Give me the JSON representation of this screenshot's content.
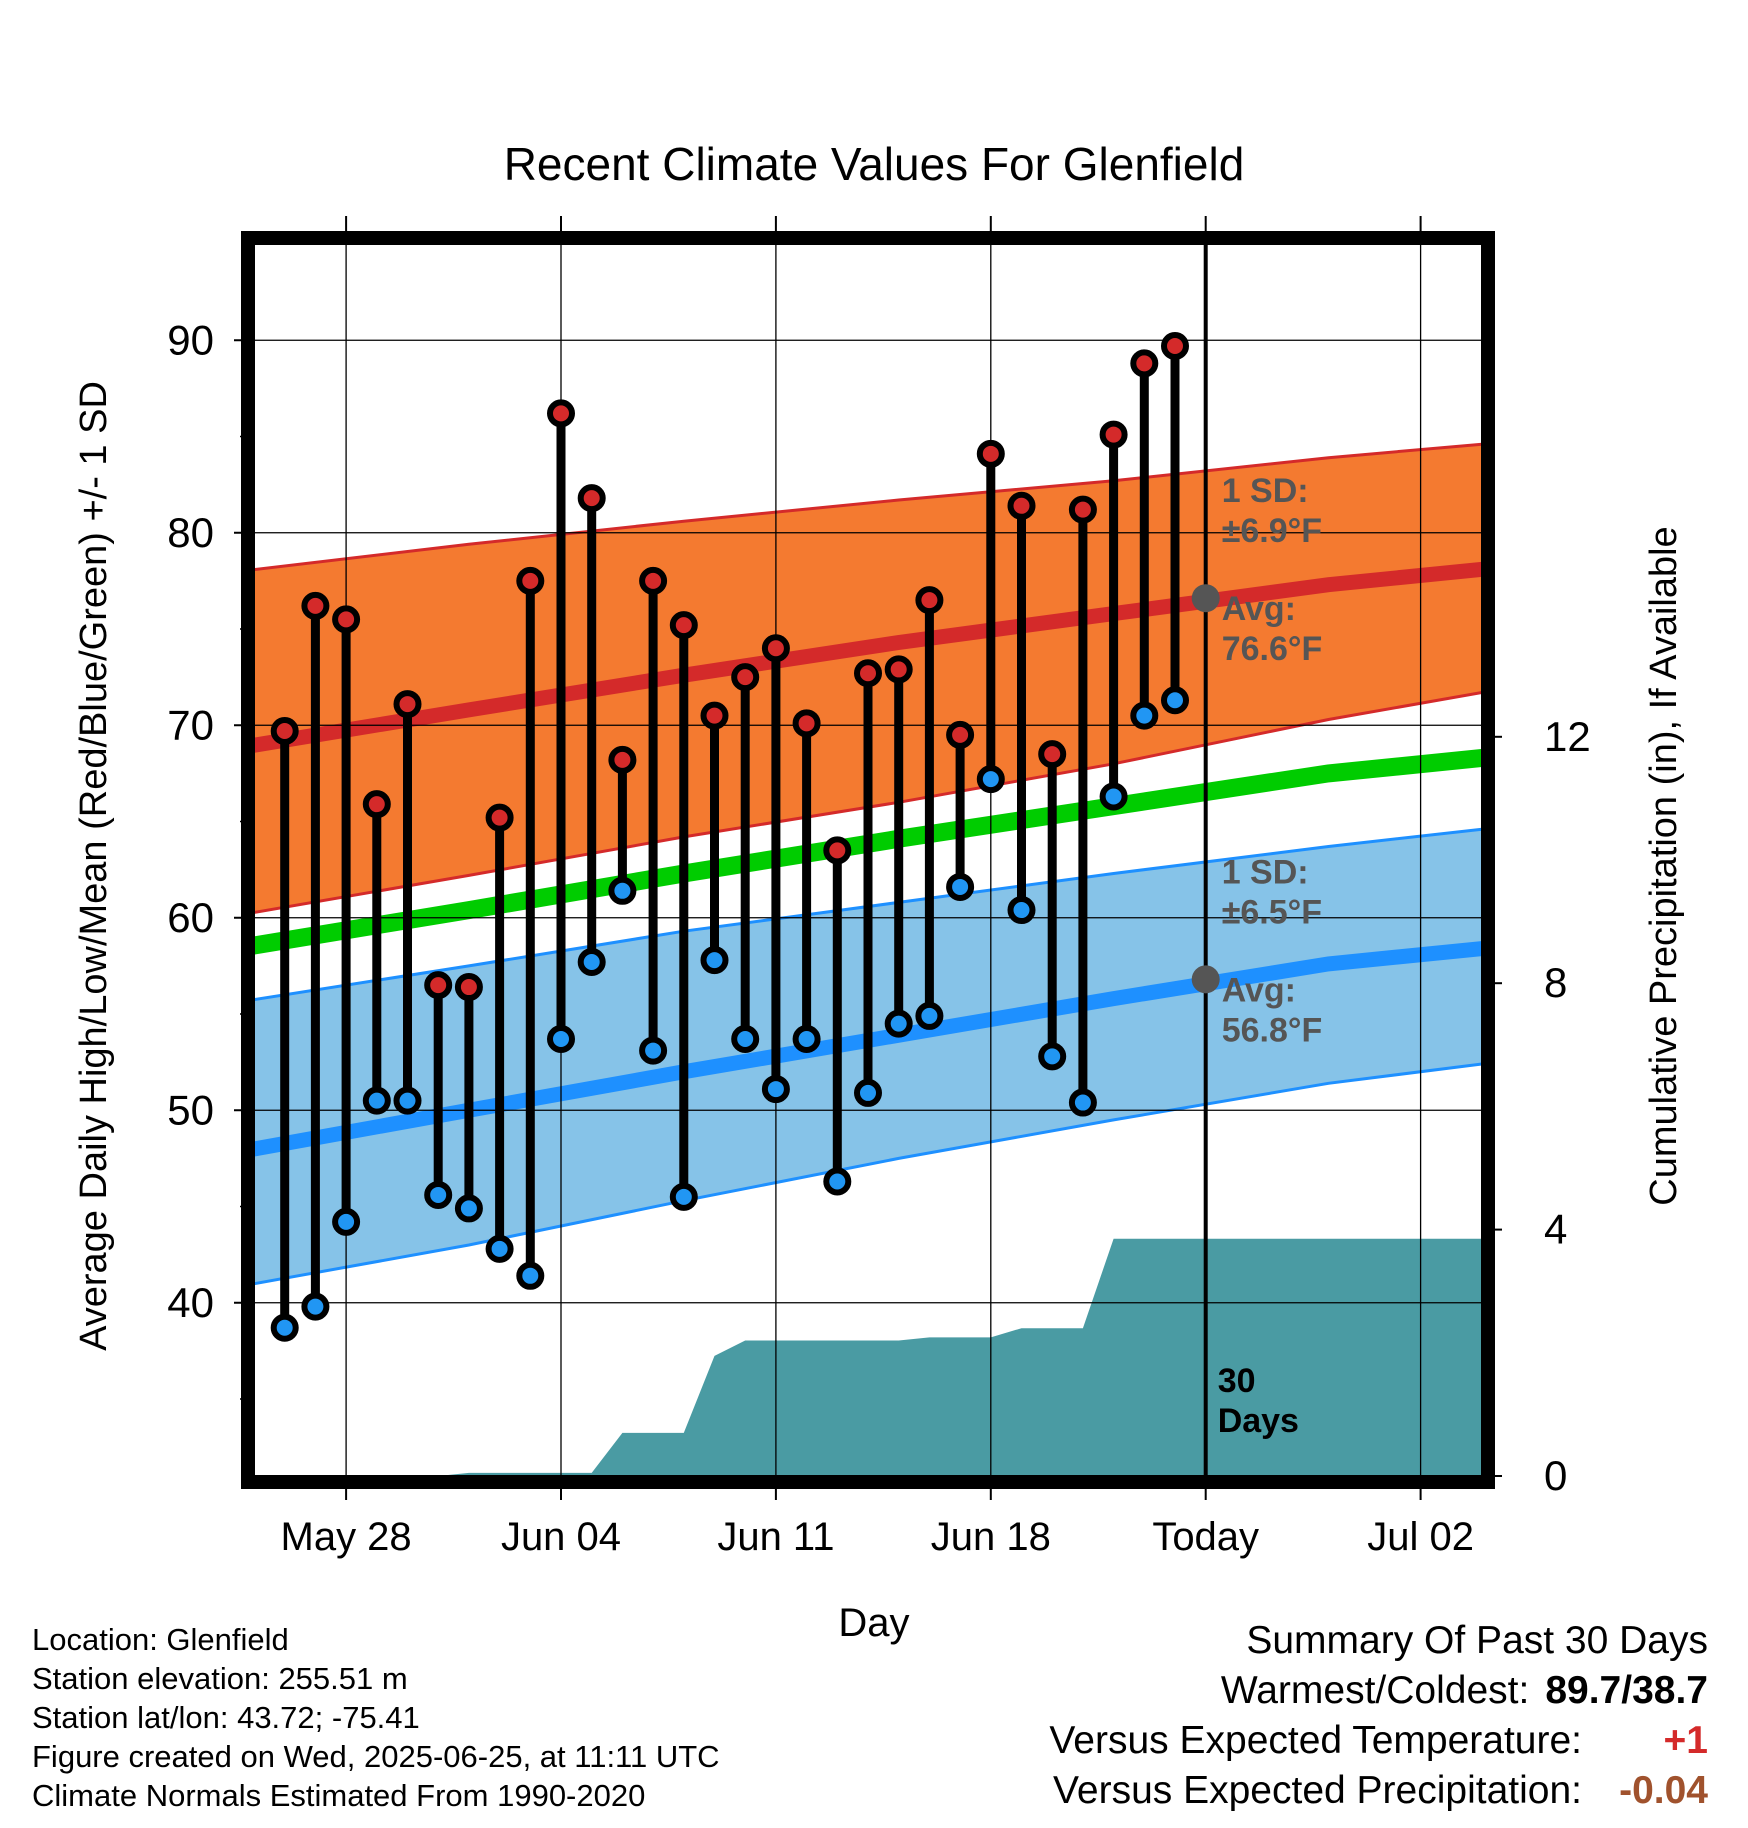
{
  "chart_data": {
    "type": "line",
    "title": "Recent Climate Values For Glenfield",
    "xlabel": "Day",
    "ylabel": "Average Daily High/Low/Mean (Red/Blue/Green) +/- 1 SD",
    "ylabel_right": "Cumulative Precipitation (in), If Available",
    "x_ticks": [
      "May 28",
      "Jun 04",
      "Jun 11",
      "Jun 18",
      "Today",
      "Jul 02"
    ],
    "x_range": [
      "May 25",
      "Jul 04"
    ],
    "ylim": [
      31,
      95
    ],
    "y_ticks": [
      40,
      50,
      60,
      70,
      80,
      90
    ],
    "ylim_right": [
      0,
      20
    ],
    "y_ticks_right": [
      0,
      4,
      8,
      12
    ],
    "grid": true,
    "today": "Jun 25",
    "today_label": "30\nDays",
    "daily_obs": [
      {
        "date": "May 26",
        "high": 69.7,
        "low": 38.7
      },
      {
        "date": "May 27",
        "high": 76.2,
        "low": 39.8
      },
      {
        "date": "May 28",
        "high": 75.5,
        "low": 44.2
      },
      {
        "date": "May 29",
        "high": 65.9,
        "low": 50.5
      },
      {
        "date": "May 30",
        "high": 71.1,
        "low": 50.5
      },
      {
        "date": "May 31",
        "high": 56.5,
        "low": 45.6
      },
      {
        "date": "Jun 01",
        "high": 56.4,
        "low": 44.9
      },
      {
        "date": "Jun 02",
        "high": 65.2,
        "low": 42.8
      },
      {
        "date": "Jun 03",
        "high": 77.5,
        "low": 41.4
      },
      {
        "date": "Jun 04",
        "high": 86.2,
        "low": 53.7
      },
      {
        "date": "Jun 05",
        "high": 81.8,
        "low": 57.7
      },
      {
        "date": "Jun 06",
        "high": 68.2,
        "low": 61.4
      },
      {
        "date": "Jun 07",
        "high": 77.5,
        "low": 53.1
      },
      {
        "date": "Jun 08",
        "high": 75.2,
        "low": 45.5
      },
      {
        "date": "Jun 09",
        "high": 70.5,
        "low": 57.8
      },
      {
        "date": "Jun 10",
        "high": 72.5,
        "low": 53.7
      },
      {
        "date": "Jun 11",
        "high": 74.0,
        "low": 51.1
      },
      {
        "date": "Jun 12",
        "high": 70.1,
        "low": 53.7
      },
      {
        "date": "Jun 13",
        "high": 63.5,
        "low": 46.3
      },
      {
        "date": "Jun 14",
        "high": 72.7,
        "low": 50.9
      },
      {
        "date": "Jun 15",
        "high": 72.9,
        "low": 54.5
      },
      {
        "date": "Jun 16",
        "high": 76.5,
        "low": 54.9
      },
      {
        "date": "Jun 17",
        "high": 69.5,
        "low": 61.6
      },
      {
        "date": "Jun 18",
        "high": 84.1,
        "low": 67.2
      },
      {
        "date": "Jun 19",
        "high": 81.4,
        "low": 60.4
      },
      {
        "date": "Jun 20",
        "high": 68.5,
        "low": 52.8
      },
      {
        "date": "Jun 21",
        "high": 81.2,
        "low": 50.4
      },
      {
        "date": "Jun 22",
        "high": 85.1,
        "low": 66.3
      },
      {
        "date": "Jun 23",
        "high": 88.8,
        "low": 70.5
      },
      {
        "date": "Jun 24",
        "high": 89.7,
        "low": 71.3
      }
    ],
    "normals": {
      "dates": [
        "May 24",
        "Jun 01",
        "Jun 08",
        "Jun 15",
        "Jun 22",
        "Jun 29",
        "Jul 04"
      ],
      "avg_high": [
        68.7,
        70.8,
        72.6,
        74.3,
        75.8,
        77.3,
        78.1
      ],
      "high_sd_upper": [
        77.9,
        79.4,
        80.6,
        81.7,
        82.7,
        83.9,
        84.6
      ],
      "high_sd_lower": [
        60.0,
        62.2,
        64.2,
        66.0,
        68.0,
        70.3,
        71.7
      ],
      "avg_mean": [
        58.3,
        60.4,
        62.3,
        64.1,
        65.8,
        67.5,
        68.3
      ],
      "avg_low": [
        47.7,
        50.0,
        52.0,
        53.9,
        55.8,
        57.6,
        58.4
      ],
      "low_sd_upper": [
        55.5,
        57.5,
        59.3,
        60.8,
        62.3,
        63.7,
        64.6
      ],
      "low_sd_lower": [
        40.7,
        43.0,
        45.3,
        47.5,
        49.5,
        51.4,
        52.4
      ]
    },
    "cumulative_precip": {
      "points": [
        [
          "May 25",
          0
        ],
        [
          "May 31",
          0
        ],
        [
          "Jun 01",
          0.05
        ],
        [
          "Jun 05",
          0.05
        ],
        [
          "Jun 06",
          0.7
        ],
        [
          "Jun 07",
          0.7
        ],
        [
          "Jun 08",
          0.7
        ],
        [
          "Jun 09",
          1.95
        ],
        [
          "Jun 10",
          2.2
        ],
        [
          "Jun 15",
          2.2
        ],
        [
          "Jun 16",
          2.25
        ],
        [
          "Jun 18",
          2.25
        ],
        [
          "Jun 19",
          2.4
        ],
        [
          "Jun 21",
          2.4
        ],
        [
          "Jun 22",
          3.85
        ],
        [
          "Jul 04",
          3.85
        ]
      ]
    },
    "annotations": {
      "high_sd": "1 SD:\n±6.9°F",
      "high_avg": "Avg:\n76.6°F",
      "low_sd": "1 SD:\n±6.5°F",
      "low_avg": "Avg:\n56.8°F"
    },
    "today_markers": {
      "avg_high": 76.6,
      "avg_low": 56.8
    },
    "colors": {
      "high_band": "#f47a30",
      "high_line": "#d42a2a",
      "low_band": "#86c3e8",
      "low_line": "#1e90ff",
      "mean_line": "#00cc00",
      "precip_fill": "#4a9ba3",
      "high_marker": "#d42a2a",
      "low_marker": "#2196f3",
      "annotation_text": "#555555"
    }
  },
  "footer": {
    "location": "Location: Glenfield",
    "elevation": "Station elevation: 255.51 m",
    "latlon": "Station lat/lon: 43.72; -75.41",
    "created": "Figure created on Wed, 2025-06-25, at 11:11 UTC",
    "normals": "Climate Normals Estimated From 1990-2020"
  },
  "summary": {
    "title": "Summary Of Past 30 Days",
    "warmest_label": "Warmest/Coldest:",
    "warmest_value": "89.7/38.7",
    "temp_label": "Versus Expected Temperature:",
    "temp_value": "+1",
    "temp_color": "#d42a2a",
    "precip_label": "Versus Expected Precipitation:",
    "precip_value": "-0.04",
    "precip_color": "#a0522d"
  }
}
